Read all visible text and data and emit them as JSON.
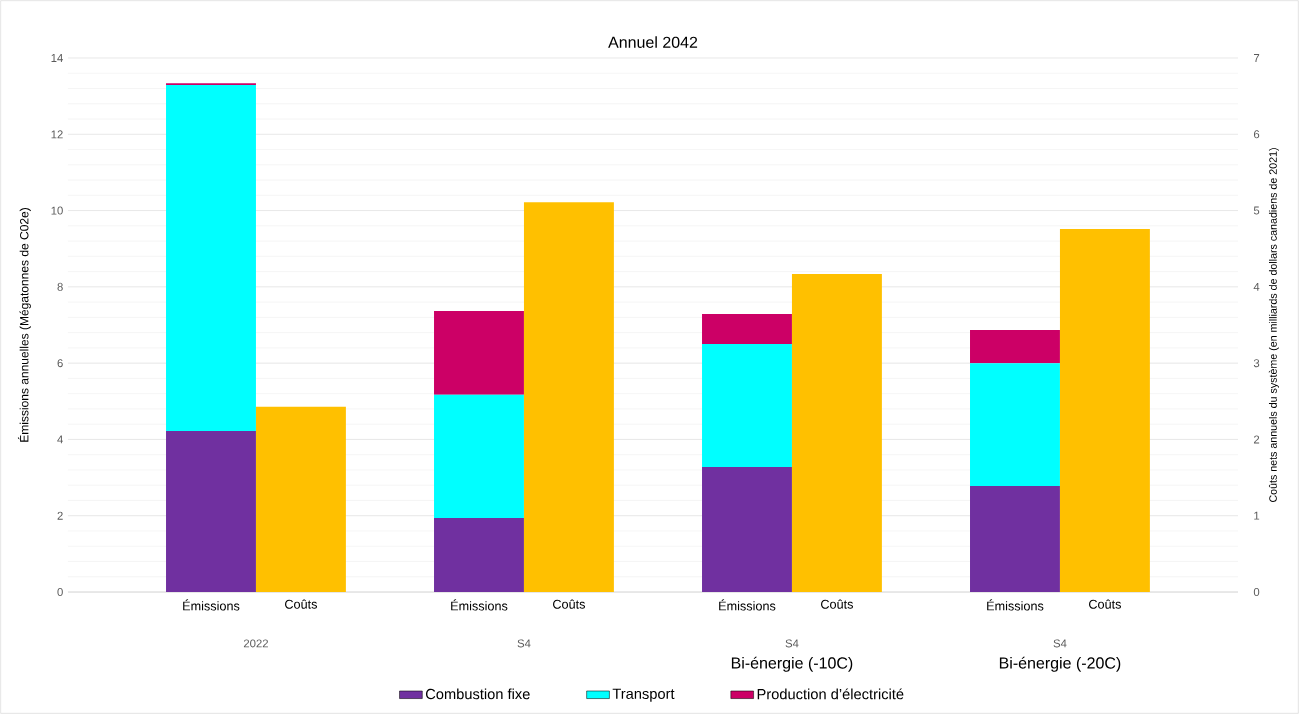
{
  "chart_data": {
    "type": "bar",
    "title": "Annuel 2042",
    "stacked": true,
    "categories": [
      "Émissions",
      "Coûts",
      "Émissions",
      "Coûts",
      "Émissions",
      "Coûts",
      "Émissions",
      "Coûts"
    ],
    "ylabel": "Émissions annuelles (Mégatonnes de C02e)",
    "y2label": "Coûts nets annuels du système (en milliards de dollars canadiens de 2021)",
    "ylim": [
      0,
      14
    ],
    "yticks": [
      0,
      2,
      4,
      6,
      8,
      10,
      12,
      14
    ],
    "y2lim": [
      0,
      7
    ],
    "y2ticks": [
      0,
      1,
      2,
      3,
      4,
      5,
      6,
      7
    ],
    "grid": "y",
    "legend": "bottom",
    "annotations": [
      "2022",
      "S4",
      "S4",
      "S4",
      "Bi-énergie (-10C)",
      "Bi-énergie (-20C)"
    ],
    "series": [
      {
        "name": "Combustion fixe",
        "color": "#7030a0",
        "values": [
          4.22,
          null,
          1.94,
          null,
          3.28,
          null,
          2.78,
          null
        ]
      },
      {
        "name": "Transport",
        "color": "#00ffff",
        "values": [
          9.07,
          null,
          3.23,
          null,
          3.22,
          null,
          3.22,
          null
        ]
      },
      {
        "name": "Production d’électricité",
        "color": "#cc0066",
        "values": [
          0.05,
          null,
          2.2,
          null,
          0.79,
          null,
          0.87,
          null
        ]
      },
      {
        "color": "#ffc000",
        "axis": "y2",
        "values": [
          null,
          2.43,
          null,
          5.11,
          null,
          4.17,
          null,
          4.76
        ]
      }
    ]
  }
}
